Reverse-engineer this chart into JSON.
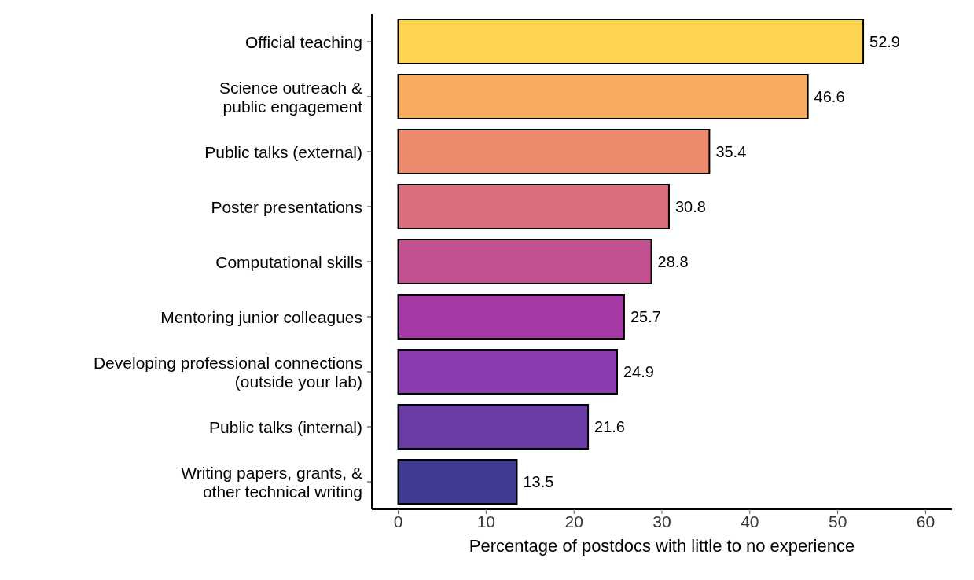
{
  "chart_data": {
    "type": "bar",
    "orientation": "horizontal",
    "xlabel": "Percentage of postdocs with little to no experience",
    "categories": [
      "Official teaching",
      "Science outreach &\npublic engagement",
      "Public talks (external)",
      "Poster presentations",
      "Computational skills",
      "Mentoring junior colleagues",
      "Developing professional connections\n(outside your lab)",
      "Public talks (internal)",
      "Writing papers, grants, &\nother technical writing"
    ],
    "values": [
      52.9,
      46.6,
      35.4,
      30.8,
      28.8,
      25.7,
      24.9,
      21.6,
      13.5
    ],
    "colors": [
      "#fcd450",
      "#f8ab5c",
      "#ec8a6e",
      "#dc6d7c",
      "#c3518f",
      "#a53aa7",
      "#8a3cb0",
      "#6a3ca6",
      "#413b92"
    ],
    "xlim": [
      -3,
      63
    ],
    "xticks": [
      0,
      10,
      20,
      30,
      40,
      50,
      60
    ],
    "data_labels": true,
    "grid": false
  }
}
